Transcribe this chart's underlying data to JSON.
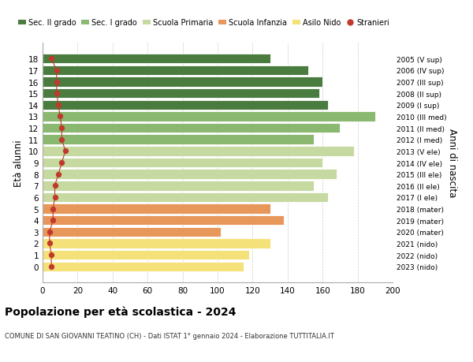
{
  "ages": [
    0,
    1,
    2,
    3,
    4,
    5,
    6,
    7,
    8,
    9,
    10,
    11,
    12,
    13,
    14,
    15,
    16,
    17,
    18
  ],
  "values": [
    115,
    118,
    130,
    102,
    138,
    130,
    163,
    155,
    168,
    160,
    178,
    155,
    170,
    190,
    163,
    158,
    160,
    152,
    130
  ],
  "foreigners": [
    5,
    5,
    4,
    4,
    6,
    6,
    7,
    7,
    9,
    11,
    13,
    11,
    11,
    10,
    9,
    8,
    8,
    8,
    5
  ],
  "bar_colors": [
    "#f5e17a",
    "#f5e17a",
    "#f5e17a",
    "#e8975a",
    "#e8975a",
    "#e8975a",
    "#c5d9a0",
    "#c5d9a0",
    "#c5d9a0",
    "#c5d9a0",
    "#c5d9a0",
    "#8ab870",
    "#8ab870",
    "#8ab870",
    "#4a7c3f",
    "#4a7c3f",
    "#4a7c3f",
    "#4a7c3f",
    "#4a7c3f"
  ],
  "right_labels": [
    "2023 (nido)",
    "2022 (nido)",
    "2021 (nido)",
    "2020 (mater)",
    "2019 (mater)",
    "2018 (mater)",
    "2017 (I ele)",
    "2016 (II ele)",
    "2015 (III ele)",
    "2014 (IV ele)",
    "2013 (V ele)",
    "2012 (I med)",
    "2011 (II med)",
    "2010 (III med)",
    "2009 (I sup)",
    "2008 (II sup)",
    "2007 (III sup)",
    "2006 (IV sup)",
    "2005 (V sup)"
  ],
  "legend_labels": [
    "Sec. II grado",
    "Sec. I grado",
    "Scuola Primaria",
    "Scuola Infanzia",
    "Asilo Nido",
    "Stranieri"
  ],
  "legend_colors": [
    "#4a7c3f",
    "#8ab870",
    "#c5d9a0",
    "#e8975a",
    "#f5e17a",
    "#c0392b"
  ],
  "ylabel": "Età alunni",
  "right_ylabel": "Anni di nascita",
  "title": "Popolazione per età scolastica - 2024",
  "subtitle": "COMUNE DI SAN GIOVANNI TEATINO (CH) - Dati ISTAT 1° gennaio 2024 - Elaborazione TUTTITALIA.IT",
  "xlim": [
    0,
    200
  ],
  "xticks": [
    0,
    20,
    40,
    60,
    80,
    100,
    120,
    140,
    160,
    180,
    200
  ],
  "foreigner_color": "#c0392b",
  "background_color": "#ffffff",
  "grid_color": "#cccccc"
}
